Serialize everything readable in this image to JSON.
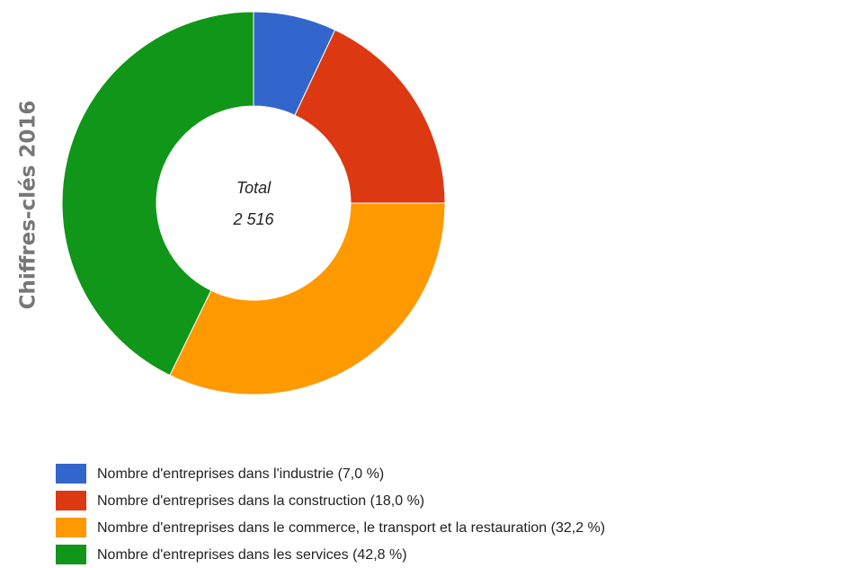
{
  "chart_data": {
    "type": "donut",
    "title": "Chiffres-clés 2016",
    "annotations": [
      "Total",
      "2 516"
    ],
    "categories": [
      "Nombre d'entreprises dans l'industrie (7,0 %)",
      "Nombre d'entreprises dans la construction (18,0 %)",
      "Nombre d'entreprises dans le commerce, le transport et la restauration (32,2 %)",
      "Nombre d'entreprises dans les services (42,8 %)"
    ],
    "values": [
      7.0,
      18.0,
      32.2,
      42.8
    ],
    "colors": [
      "#3366cc",
      "#dc3912",
      "#ff9900",
      "#109618"
    ]
  }
}
